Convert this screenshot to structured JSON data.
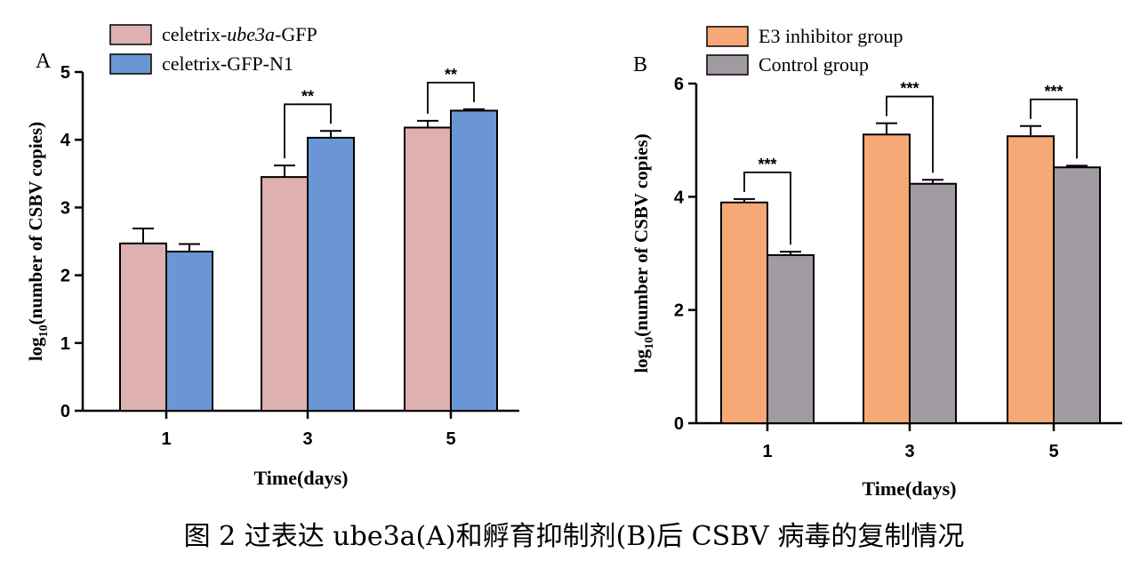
{
  "caption": "图 2 过表达 ube3a(A)和孵育抑制剂(B)后 CSBV 病毒的复制情况",
  "chart_data": [
    {
      "type": "bar",
      "panel_label": "A",
      "categories": [
        "1",
        "3",
        "5"
      ],
      "xlabel": "Time(days)",
      "ylabel_prefix": "log",
      "ylabel_sub": "10",
      "ylabel_rest": "(number of CSBV copies)",
      "ylim": [
        0,
        5
      ],
      "yticks": [
        0,
        1,
        2,
        3,
        4,
        5
      ],
      "legend_position": "top-left",
      "series": [
        {
          "name": "celetrix-ube3a-GFP",
          "name_parts": [
            "celetrix-",
            "ube3a",
            "-GFP"
          ],
          "color": "#deb0b0",
          "values": [
            2.47,
            3.45,
            4.18
          ],
          "errors": [
            0.22,
            0.17,
            0.1
          ]
        },
        {
          "name": "celetrix-GFP-N1",
          "name_parts": [
            "celetrix-GFP-N1",
            "",
            ""
          ],
          "color": "#6a96d6",
          "values": [
            2.35,
            4.03,
            4.43
          ],
          "errors": [
            0.11,
            0.1,
            0.02
          ]
        }
      ],
      "significance": [
        {
          "category": "3",
          "label": "**"
        },
        {
          "category": "5",
          "label": "**"
        }
      ]
    },
    {
      "type": "bar",
      "panel_label": "B",
      "categories": [
        "1",
        "3",
        "5"
      ],
      "xlabel": "Time(days)",
      "ylabel_prefix": "log",
      "ylabel_sub": "10",
      "ylabel_rest": "(number of CSBV copies)",
      "ylim": [
        0,
        6
      ],
      "yticks": [
        0,
        2,
        4,
        6
      ],
      "legend_position": "top-left",
      "series": [
        {
          "name": "E3 inhibitor group",
          "name_parts": [
            "E3 inhibitor group",
            "",
            ""
          ],
          "color": "#f6a877",
          "values": [
            3.9,
            5.1,
            5.07
          ],
          "errors": [
            0.06,
            0.2,
            0.18
          ]
        },
        {
          "name": "Control group",
          "name_parts": [
            "Control group",
            "",
            ""
          ],
          "color": "#a19aa2",
          "values": [
            2.97,
            4.23,
            4.52
          ],
          "errors": [
            0.06,
            0.07,
            0.03
          ]
        }
      ],
      "significance": [
        {
          "category": "1",
          "label": "***"
        },
        {
          "category": "3",
          "label": "***"
        },
        {
          "category": "5",
          "label": "***"
        }
      ]
    }
  ]
}
